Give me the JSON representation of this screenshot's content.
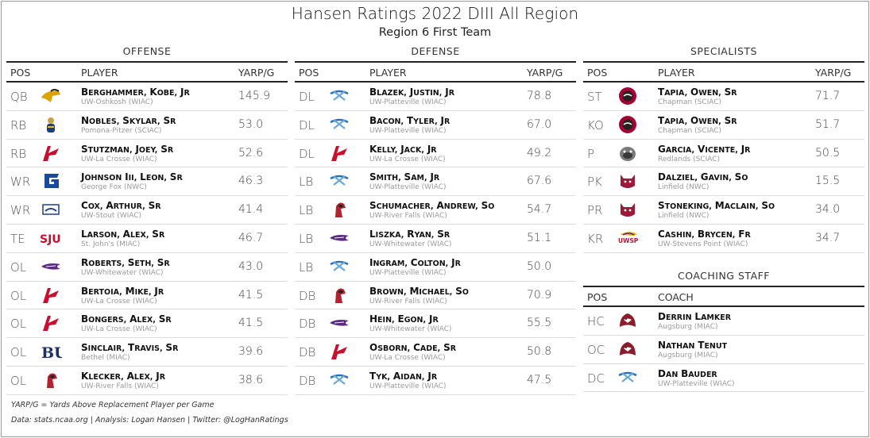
{
  "title": "Hansen Ratings 2022 DIII All Region",
  "subtitle": "Region 6 First Team",
  "offense": {
    "label": "OFFENSE",
    "headers": {
      "pos": "POS",
      "player": "PLAYER",
      "val": "YARP/G"
    },
    "rows": [
      {
        "pos": "QB",
        "name": "Berghammer, Kobe, Jr",
        "team": "UW-Oshkosh (WIAC)",
        "val": "145.9",
        "logo": "oshkosh-titan-icon"
      },
      {
        "pos": "RB",
        "name": "Nobles, Skylar, Sr",
        "team": "Pomona-Pitzer (SCIAC)",
        "val": "53.0",
        "logo": "sagehen-icon"
      },
      {
        "pos": "RB",
        "name": "Stutzman, Joey, Sr",
        "team": "UW-La Crosse (WIAC)",
        "val": "52.6",
        "logo": "lacrosse-eagle-icon"
      },
      {
        "pos": "WR",
        "name": "Johnson III, Leon, Sr",
        "team": "George Fox (NWC)",
        "val": "46.3",
        "logo": "georgefox-g-icon"
      },
      {
        "pos": "WR",
        "name": "Cox, Arthur, Sr",
        "team": "UW-Stout (WIAC)",
        "val": "41.4",
        "logo": "stout-blue-devil-icon"
      },
      {
        "pos": "TE",
        "name": "Larson, Alex, Sr",
        "team": "St. John's (MIAC)",
        "val": "46.7",
        "logo": "sju-wordmark-icon"
      },
      {
        "pos": "OL",
        "name": "Roberts, Seth, Sr",
        "team": "UW-Whitewater (WIAC)",
        "val": "43.0",
        "logo": "warhawk-icon"
      },
      {
        "pos": "OL",
        "name": "Bertoia, Mike, Jr",
        "team": "UW-La Crosse (WIAC)",
        "val": "41.5",
        "logo": "lacrosse-eagle-icon"
      },
      {
        "pos": "OL",
        "name": "Bongers, Alex, Sr",
        "team": "UW-La Crosse (WIAC)",
        "val": "41.5",
        "logo": "lacrosse-eagle-icon"
      },
      {
        "pos": "OL",
        "name": "Sinclair, Travis, Sr",
        "team": "Bethel (MIAC)",
        "val": "39.6",
        "logo": "bethel-bu-icon"
      },
      {
        "pos": "OL",
        "name": "Klecker, Alex, Jr",
        "team": "UW-River Falls (WIAC)",
        "val": "38.6",
        "logo": "falcon-icon"
      }
    ]
  },
  "defense": {
    "label": "DEFENSE",
    "headers": {
      "pos": "POS",
      "player": "PLAYER",
      "val": "YARP/G"
    },
    "rows": [
      {
        "pos": "DL",
        "name": "Blazek, Justin, Jr",
        "team": "UW-Platteville (WIAC)",
        "val": "78.8",
        "logo": "pioneer-pick-icon"
      },
      {
        "pos": "DL",
        "name": "Bacon, Tyler, Jr",
        "team": "UW-Platteville (WIAC)",
        "val": "67.0",
        "logo": "pioneer-pick-icon"
      },
      {
        "pos": "DL",
        "name": "Kelly, Jack, Jr",
        "team": "UW-La Crosse (WIAC)",
        "val": "49.2",
        "logo": "lacrosse-eagle-icon"
      },
      {
        "pos": "LB",
        "name": "Smith, Sam, Jr",
        "team": "UW-Platteville (WIAC)",
        "val": "67.6",
        "logo": "pioneer-pick-icon"
      },
      {
        "pos": "LB",
        "name": "Schumacher, Andrew, So",
        "team": "UW-River Falls (WIAC)",
        "val": "54.7",
        "logo": "falcon-icon"
      },
      {
        "pos": "LB",
        "name": "Liszka, Ryan, Sr",
        "team": "UW-Whitewater (WIAC)",
        "val": "51.1",
        "logo": "warhawk-icon"
      },
      {
        "pos": "LB",
        "name": "Ingram, Colton, Jr",
        "team": "UW-Platteville (WIAC)",
        "val": "50.0",
        "logo": "pioneer-pick-icon"
      },
      {
        "pos": "DB",
        "name": "Brown, Michael, So",
        "team": "UW-River Falls (WIAC)",
        "val": "70.9",
        "logo": "falcon-icon"
      },
      {
        "pos": "DB",
        "name": "Hein, Egon, Jr",
        "team": "UW-Whitewater (WIAC)",
        "val": "55.5",
        "logo": "warhawk-icon"
      },
      {
        "pos": "DB",
        "name": "Osborn, Cade, Sr",
        "team": "UW-La Crosse (WIAC)",
        "val": "50.8",
        "logo": "lacrosse-eagle-icon"
      },
      {
        "pos": "DB",
        "name": "Tyk, Aidan, Jr",
        "team": "UW-Platteville (WIAC)",
        "val": "47.5",
        "logo": "pioneer-pick-icon"
      }
    ]
  },
  "specialists": {
    "label": "SPECIALISTS",
    "headers": {
      "pos": "POS",
      "player": "PLAYER",
      "val": "YARP/G"
    },
    "rows": [
      {
        "pos": "ST",
        "name": "Tapia, Owen, Sr",
        "team": "Chapman (SCIAC)",
        "val": "71.7",
        "logo": "chapman-panther-icon"
      },
      {
        "pos": "KO",
        "name": "Tapia, Owen, Sr",
        "team": "Chapman (SCIAC)",
        "val": "51.7",
        "logo": "chapman-panther-icon"
      },
      {
        "pos": "P",
        "name": "Garcia, Vicente, Jr",
        "team": "Redlands (SCIAC)",
        "val": "50.5",
        "logo": "bulldog-icon"
      },
      {
        "pos": "PK",
        "name": "Dalziel, Gavin, So",
        "team": "Linfield (NWC)",
        "val": "15.5",
        "logo": "wildcat-icon"
      },
      {
        "pos": "PR",
        "name": "Stoneking, Maclain, So",
        "team": "Linfield (NWC)",
        "val": "34.0",
        "logo": "wildcat-icon"
      },
      {
        "pos": "KR",
        "name": "Cashin, Brycen, Fr",
        "team": "UW-Stevens Point (WIAC)",
        "val": "34.7",
        "logo": "uwsp-pointer-icon",
        "logo_text": "UWSP"
      }
    ]
  },
  "coaching": {
    "label": "COACHING STAFF",
    "headers": {
      "pos": "POS",
      "coach": "COACH"
    },
    "rows": [
      {
        "pos": "HC",
        "name": "Derrin Lamker",
        "team": "Augsburg (MIAC)",
        "logo": "auggie-eagle-icon"
      },
      {
        "pos": "OC",
        "name": "Nathan Tenut",
        "team": "Augsburg (MIAC)",
        "logo": "auggie-eagle-icon"
      },
      {
        "pos": "DC",
        "name": "Dan Bauder",
        "team": "UW-Platteville (WIAC)",
        "logo": "pioneer-pick-icon"
      }
    ]
  },
  "footnotes": {
    "definition": "YARP/G = Yards Above Replacement Player per Game",
    "credits": "Data: stats.ncaa.org | Analysis: Logan Hansen | Twitter: @LogHanRatings"
  },
  "colors": {
    "rule": "#222222",
    "row_divider": "#dcdcdc",
    "team_text": "#9a9a9a",
    "lacrosse_red": "#c8102e",
    "platteville_blue": "#2a6fb5",
    "warhawk_purple": "#5a2a82",
    "chapman_red": "#a50034"
  }
}
